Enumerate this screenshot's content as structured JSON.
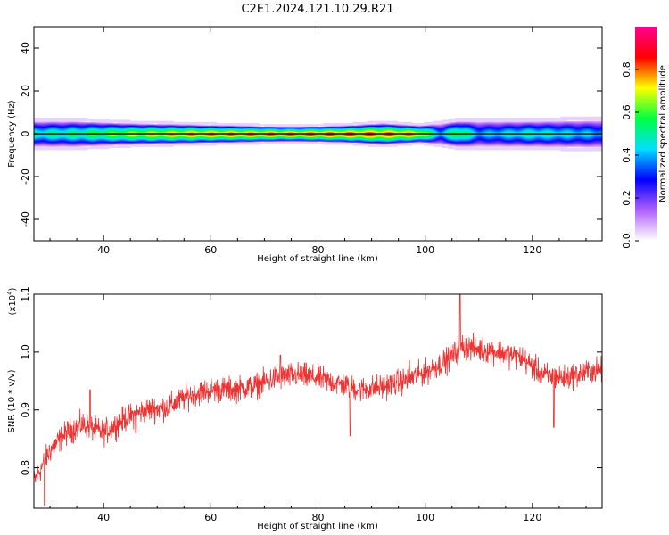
{
  "figure_title": "C2E1.2024.121.10.29.R21",
  "chart_data": [
    {
      "type": "heatmap",
      "xlabel": "Height of straight line (km)",
      "ylabel": "Frequency (Hz)",
      "xlim": [
        27,
        133
      ],
      "ylim": [
        -50,
        50
      ],
      "x_ticks": [
        40,
        60,
        80,
        100,
        120
      ],
      "y_ticks": [
        -40,
        -20,
        0,
        20,
        40
      ],
      "colorbar": {
        "label": "Normalized spectral amplitude",
        "range": [
          0.0,
          1.0
        ],
        "ticks": [
          0.0,
          0.2,
          0.4,
          0.6,
          0.8
        ],
        "tick_labels": [
          "0.0",
          "0.2",
          "0.4",
          "0.6",
          "0.8"
        ],
        "colors": [
          "#ffffff",
          "#b060ff",
          "#0000ff",
          "#00e0ff",
          "#00ff40",
          "#ffff00",
          "#ff0000",
          "#ff0090"
        ]
      },
      "ridge": {
        "center_frequency_hz": 0,
        "profile": [
          {
            "x": 27,
            "half_width_hz": 6,
            "peak": 0.55
          },
          {
            "x": 35,
            "half_width_hz": 6,
            "peak": 0.6
          },
          {
            "x": 45,
            "half_width_hz": 5,
            "peak": 0.75
          },
          {
            "x": 55,
            "half_width_hz": 4.5,
            "peak": 0.85
          },
          {
            "x": 65,
            "half_width_hz": 4,
            "peak": 0.88
          },
          {
            "x": 75,
            "half_width_hz": 3.5,
            "peak": 0.9
          },
          {
            "x": 85,
            "half_width_hz": 4,
            "peak": 0.92
          },
          {
            "x": 92,
            "half_width_hz": 5,
            "peak": 0.9
          },
          {
            "x": 99,
            "half_width_hz": 4,
            "peak": 0.85
          },
          {
            "x": 103,
            "half_width_hz": 5,
            "peak": 0.45
          },
          {
            "x": 106,
            "half_width_hz": 6,
            "peak": 0.7
          },
          {
            "x": 110,
            "half_width_hz": 6,
            "peak": 0.45
          },
          {
            "x": 120,
            "half_width_hz": 6,
            "peak": 0.55
          },
          {
            "x": 133,
            "half_width_hz": 6.5,
            "peak": 0.45
          }
        ]
      }
    },
    {
      "type": "line",
      "xlabel": "Height of straight line (km)",
      "ylabel": "SNR (10 * v/v)",
      "y_scale_label": "(x10",
      "y_scale_exponent": "4",
      "y_scale_suffix": ")",
      "xlim": [
        27,
        133
      ],
      "ylim": [
        0.73,
        1.1
      ],
      "x_ticks": [
        40,
        60,
        80,
        100,
        120
      ],
      "y_ticks": [
        0.8,
        0.9,
        1.0,
        1.1
      ],
      "y_tick_labels": [
        "0.8",
        "0.9",
        "1.0",
        "1.1"
      ],
      "series": [
        {
          "color": "#ee3333",
          "trend": {
            "x": [
              27,
              30,
              33,
              36,
              40,
              44,
              48,
              52,
              56,
              60,
              64,
              68,
              72,
              76,
              80,
              84,
              88,
              92,
              96,
              100,
              104,
              107,
              110,
              114,
              118,
              122,
              126,
              130,
              133
            ],
            "y": [
              0.775,
              0.83,
              0.86,
              0.875,
              0.86,
              0.885,
              0.9,
              0.905,
              0.925,
              0.935,
              0.935,
              0.94,
              0.955,
              0.96,
              0.955,
              0.945,
              0.935,
              0.94,
              0.95,
              0.965,
              0.985,
              1.01,
              1.005,
              1.0,
              0.99,
              0.96,
              0.955,
              0.965,
              0.97
            ]
          },
          "noise_amplitude": 0.018,
          "spikes": [
            {
              "x": 29,
              "y": 0.735
            },
            {
              "x": 37.5,
              "y": 0.935
            },
            {
              "x": 46,
              "y": 0.86
            },
            {
              "x": 73,
              "y": 0.995
            },
            {
              "x": 86,
              "y": 0.855
            },
            {
              "x": 97,
              "y": 0.985
            },
            {
              "x": 106.5,
              "y": 1.1
            },
            {
              "x": 124,
              "y": 0.87
            }
          ]
        }
      ]
    }
  ]
}
